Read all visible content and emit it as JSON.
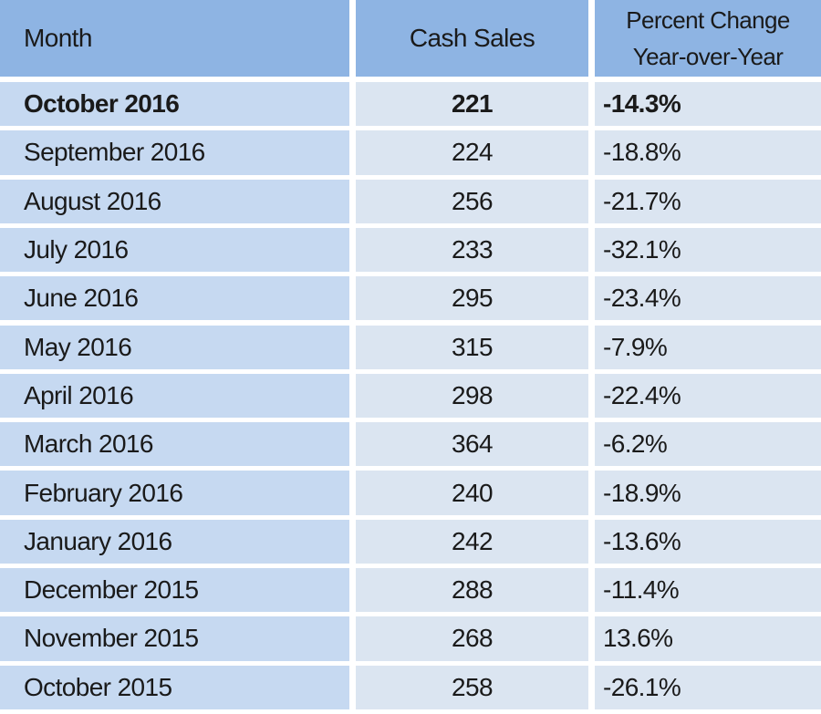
{
  "table": {
    "header": [
      "Month",
      "Cash Sales",
      "Percent Change Year-over-Year"
    ],
    "rows": [
      [
        "October 2016",
        "221",
        "-14.3%"
      ],
      [
        "September 2016",
        "224",
        "-18.8%"
      ],
      [
        "August 2016",
        "256",
        "-21.7%"
      ],
      [
        "July 2016",
        "233",
        "-32.1%"
      ],
      [
        "June 2016",
        "295",
        "-23.4%"
      ],
      [
        "May 2016",
        "315",
        "-7.9%"
      ],
      [
        "April 2016",
        "298",
        "-22.4%"
      ],
      [
        "March 2016",
        "364",
        "-6.2%"
      ],
      [
        "February 2016",
        "240",
        "-18.9%"
      ],
      [
        "January 2016",
        "242",
        "-13.6%"
      ],
      [
        "December 2015",
        "288",
        "-11.4%"
      ],
      [
        "November 2015",
        "268",
        "13.6%"
      ],
      [
        "October 2015",
        "258",
        "-26.1%"
      ]
    ]
  }
}
